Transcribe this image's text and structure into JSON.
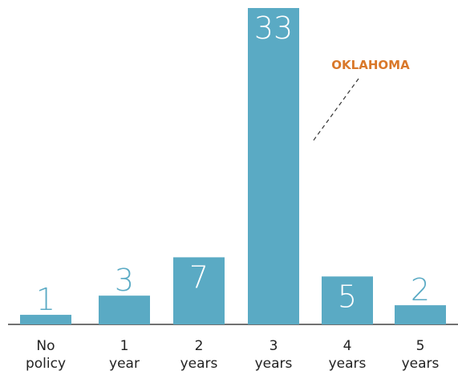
{
  "chart_data": {
    "type": "bar",
    "categories": [
      "No policy",
      "1 year",
      "2 years",
      "3 years",
      "4 years",
      "5 years"
    ],
    "values": [
      1,
      3,
      7,
      33,
      5,
      2
    ],
    "color": "#5aaac4",
    "ylim": [
      0,
      33
    ],
    "annotation": "OKLAHOMA",
    "annotation_color": "#d9782a"
  }
}
